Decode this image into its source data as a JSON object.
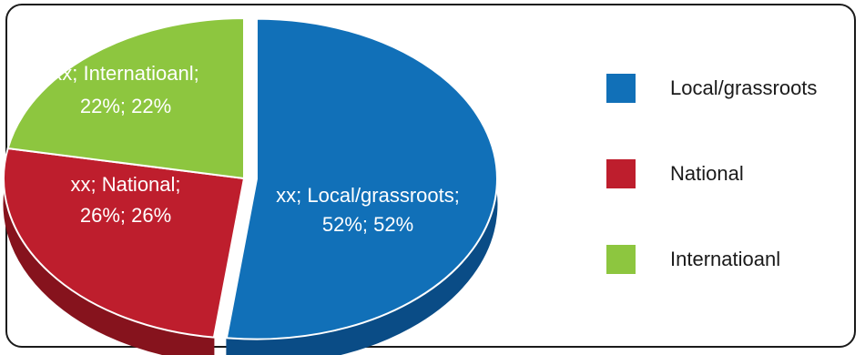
{
  "chart_data": {
    "type": "pie",
    "title": "",
    "categories": [
      "Local/grassroots",
      "National",
      "Internatioanl"
    ],
    "series": [
      {
        "values": [
          52,
          26,
          22
        ]
      }
    ],
    "data_labels": [
      {
        "line1": "xx; Local/grassroots;",
        "line2": "52%; 52%"
      },
      {
        "line1": "xx; National;",
        "line2": "26%; 26%"
      },
      {
        "line1": "xx; Internatioanl;",
        "line2": "22%; 22%"
      }
    ],
    "legend": {
      "position": "right",
      "entries": [
        "Local/grassroots",
        "National",
        "Internatioanl"
      ]
    },
    "colors": {
      "Local/grassroots": {
        "top": "#1170b8",
        "side": "#0a4c86"
      },
      "National": {
        "top": "#be1e2d",
        "side": "#86131d"
      },
      "Internatioanl": {
        "top": "#8dc63f",
        "side": "#5f8f22"
      }
    }
  }
}
